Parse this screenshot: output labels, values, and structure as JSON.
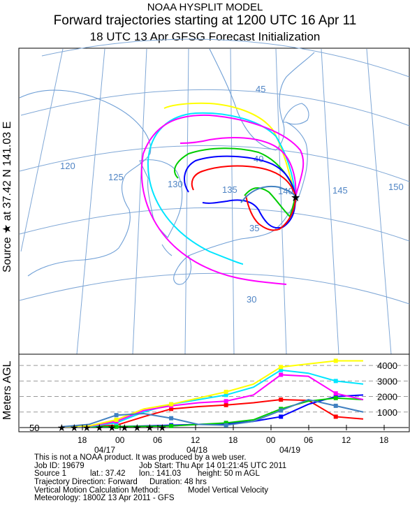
{
  "header": {
    "title": "NOAA HYSPLIT MODEL",
    "subtitle": "Forward trajectories starting at 1200 UTC 16 Apr 11",
    "subtitle2": "18 UTC 13 Apr    GFSG  Forecast Initialization"
  },
  "map": {
    "side_label": "Source ★ at   37.42 N  141.03 E",
    "lon_labels": [
      "120",
      "125",
      "130",
      "135",
      "140",
      "145",
      "150"
    ],
    "lat_labels": [
      "45",
      "40",
      "35",
      "30"
    ]
  },
  "colors": {
    "red": "#ff0000",
    "blue": "#0000ff",
    "green": "#00cc00",
    "cyan": "#00e5ff",
    "magenta": "#ff00ff",
    "yellow": "#ffff00",
    "steelblue": "#4080c0",
    "coast": "#6f9fd6",
    "graticule": "#7fa7d6",
    "label": "#4f84c4"
  },
  "chart_data": {
    "type": "line",
    "title": "Forward trajectories starting at 1200 UTC 16 Apr 11",
    "ylabel": "Meters AGL",
    "y_ticks": [
      1000,
      2000,
      3000,
      4000
    ],
    "source_height_label": "50",
    "ylim": [
      0,
      4500
    ],
    "x_hours_after_start": [
      0,
      48
    ],
    "x_tick_labels": [
      "18",
      "00",
      "06",
      "12",
      "18",
      "00",
      "06",
      "12",
      "18",
      "00",
      "06",
      "12",
      "18"
    ],
    "x_date_labels": [
      "04/17",
      "04/18",
      "04/19"
    ],
    "series": [
      {
        "color": "red",
        "values": [
          50,
          60,
          150,
          700,
          1200,
          1350,
          1450,
          1600,
          1800,
          1750,
          700,
          550
        ]
      },
      {
        "color": "blue",
        "values": [
          50,
          50,
          60,
          100,
          150,
          200,
          250,
          400,
          700,
          1500,
          2000,
          2100
        ]
      },
      {
        "color": "green",
        "values": [
          50,
          50,
          60,
          80,
          100,
          200,
          300,
          500,
          1200,
          1700,
          1900,
          1800
        ]
      },
      {
        "color": "cyan",
        "values": [
          50,
          60,
          300,
          1000,
          1500,
          1800,
          2100,
          2600,
          3700,
          3500,
          3000,
          2800
        ]
      },
      {
        "color": "magenta",
        "values": [
          50,
          80,
          400,
          1100,
          1400,
          1600,
          1700,
          2100,
          3400,
          3300,
          2200,
          1800
        ]
      },
      {
        "color": "yellow",
        "values": [
          50,
          100,
          500,
          1200,
          1500,
          1900,
          2300,
          2800,
          3900,
          4100,
          4300,
          4300
        ]
      },
      {
        "color": "steelblue",
        "values": [
          50,
          200,
          800,
          900,
          600,
          200,
          150,
          400,
          1100,
          1800,
          1400,
          1000
        ]
      }
    ]
  },
  "footer": {
    "line1": "This is not a NOAA product. It was produced by a web user.",
    "job_id": "Job ID: 19679",
    "job_start": "Job Start: Thu Apr 14 01:21:45 UTC 2011",
    "source": "Source 1",
    "lat": "lat.: 37.42",
    "lon": "lon.: 141.03",
    "height": "height: 50 m AGL",
    "direction": "Trajectory Direction: Forward",
    "duration": "Duration: 48 hrs",
    "vertical": "Vertical Motion Calculation Method:",
    "vertical_val": "Model Vertical Velocity",
    "meteorology": "Meteorology: 1800Z 13 Apr 2011 - GFS"
  }
}
